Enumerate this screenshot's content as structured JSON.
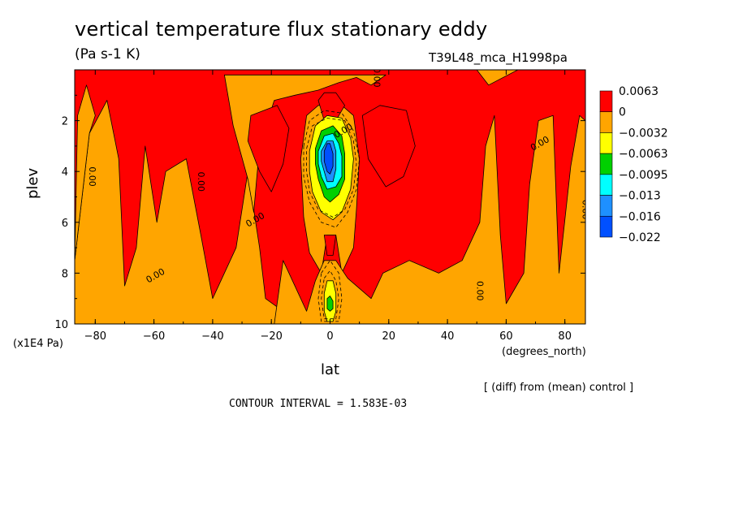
{
  "header": {
    "title": "vertical temperature flux stationary eddy",
    "units": "(Pa s-1 K)",
    "run_id": "T39L48_mca_H1998pa"
  },
  "footer": {
    "diff_note": "[ (diff) from (mean) control ]",
    "contour_interval": "CONTOUR INTERVAL = 1.583E-03"
  },
  "chart_data": {
    "type": "contour",
    "xlabel": "lat",
    "x_unit": "(degrees_north)",
    "ylabel": "plev",
    "y_scale_note": "(x1E4 Pa)",
    "xlim": [
      -87,
      87
    ],
    "ylim": [
      10,
      0
    ],
    "x_ticks": [
      -80,
      -60,
      -40,
      -20,
      0,
      20,
      40,
      60,
      80
    ],
    "y_ticks": [
      2,
      4,
      6,
      8,
      10
    ],
    "contour_label": "0.00",
    "colorbar": {
      "levels": [
        "0.0063",
        "0",
        "−0.0032",
        "−0.0063",
        "−0.0095",
        "−0.013",
        "−0.016",
        "−0.022"
      ],
      "colors": [
        "#ff0000",
        "#ffa500",
        "#ffff00",
        "#00d000",
        "#00ffff",
        "#1e90ff",
        "#0050ff"
      ]
    },
    "fill_colors": {
      "positive": "#ff0000",
      "near_zero": "#ffa500",
      "neg1": "#ffff00",
      "neg2": "#00d000",
      "neg3": "#00ffff",
      "neg4": "#1e90ff",
      "neg5": "#0050ff"
    },
    "regions": [
      {
        "band": "near_zero",
        "pts": [
          [
            -87,
            10
          ],
          [
            -87,
            7.5
          ],
          [
            -82,
            2.5
          ],
          [
            -76,
            1.2
          ],
          [
            -72,
            3.5
          ],
          [
            -70,
            8.5
          ],
          [
            -66,
            7
          ],
          [
            -63,
            3
          ],
          [
            -59,
            6
          ],
          [
            -56,
            4
          ],
          [
            -49,
            3.5
          ],
          [
            -44,
            6.5
          ],
          [
            -40,
            9
          ],
          [
            -32,
            7
          ],
          [
            -28,
            4
          ],
          [
            -24,
            7
          ],
          [
            -22,
            9
          ],
          [
            -10,
            10
          ]
        ]
      },
      {
        "band": "near_zero",
        "pts": [
          [
            -87,
            7.5
          ],
          [
            -86,
            1.8
          ],
          [
            -83,
            0.6
          ],
          [
            -80,
            1.8
          ],
          [
            -82,
            2.5
          ]
        ]
      },
      {
        "band": "near_zero",
        "pts": [
          [
            -36,
            0.2
          ],
          [
            -33,
            2.2
          ],
          [
            -28,
            4.3
          ],
          [
            -26,
            5.6
          ],
          [
            -24,
            3
          ],
          [
            -19,
            1.2
          ],
          [
            -12,
            1
          ],
          [
            -4,
            0.8
          ],
          [
            3,
            0.5
          ],
          [
            9,
            0.3
          ],
          [
            14,
            0.6
          ],
          [
            19,
            0.2
          ]
        ]
      },
      {
        "band": "near_zero",
        "pts": [
          [
            -8,
            1.8
          ],
          [
            -10,
            3.5
          ],
          [
            -9,
            5.8
          ],
          [
            -7,
            7.2
          ],
          [
            -3,
            8
          ],
          [
            -1,
            6.5
          ],
          [
            2,
            6.5
          ],
          [
            4,
            8
          ],
          [
            8,
            7
          ],
          [
            9,
            5.5
          ],
          [
            10,
            3.5
          ],
          [
            8,
            1.8
          ],
          [
            4,
            1.4
          ],
          [
            -4,
            1.4
          ]
        ]
      },
      {
        "band": "near_zero",
        "pts": [
          [
            -19,
            10
          ],
          [
            -16,
            7.5
          ],
          [
            -8,
            9.5
          ],
          [
            -5,
            8.3
          ],
          [
            -2,
            7.5
          ],
          [
            2,
            7.5
          ],
          [
            6,
            8.2
          ],
          [
            14,
            9
          ],
          [
            18,
            8
          ],
          [
            27,
            7.5
          ],
          [
            37,
            8
          ],
          [
            45,
            7.5
          ],
          [
            51,
            6
          ],
          [
            53,
            3
          ],
          [
            56,
            1.8
          ],
          [
            58,
            6.5
          ],
          [
            60,
            9.2
          ],
          [
            66,
            8
          ],
          [
            68,
            4.5
          ],
          [
            71,
            2
          ],
          [
            76,
            1.8
          ],
          [
            78,
            8
          ],
          [
            82,
            3.8
          ],
          [
            85,
            1.8
          ],
          [
            87,
            2
          ],
          [
            87,
            10
          ]
        ]
      },
      {
        "band": "near_zero",
        "pts": [
          [
            50,
            0
          ],
          [
            54,
            0.6
          ],
          [
            64,
            0
          ],
          [
            60,
            0
          ]
        ]
      },
      {
        "band": "positive",
        "pts": [
          [
            -27,
            1.8
          ],
          [
            -18,
            1.4
          ],
          [
            -14,
            2.3
          ],
          [
            -16,
            3.7
          ],
          [
            -20,
            4.8
          ],
          [
            -24,
            4
          ],
          [
            -28,
            2.8
          ]
        ]
      },
      {
        "band": "positive",
        "pts": [
          [
            11,
            1.8
          ],
          [
            17,
            1.4
          ],
          [
            26,
            1.6
          ],
          [
            29,
            3
          ],
          [
            25,
            4.2
          ],
          [
            19,
            4.6
          ],
          [
            13,
            3.5
          ]
        ]
      },
      {
        "band": "positive",
        "pts": [
          [
            -4,
            1.2
          ],
          [
            -2,
            0.9
          ],
          [
            2,
            0.9
          ],
          [
            5,
            1.4
          ],
          [
            2,
            2
          ],
          [
            -2,
            2
          ]
        ]
      },
      {
        "band": "positive",
        "pts": [
          [
            -2,
            6.5
          ],
          [
            2,
            6.5
          ],
          [
            1,
            7.3
          ],
          [
            -1,
            7.3
          ]
        ]
      },
      {
        "band": "neg1",
        "pts": [
          [
            -7,
            3.2
          ],
          [
            -5,
            2.2
          ],
          [
            -1,
            1.8
          ],
          [
            4,
            1.9
          ],
          [
            7,
            2.7
          ],
          [
            8,
            3.5
          ],
          [
            7,
            4.7
          ],
          [
            4,
            5.6
          ],
          [
            1,
            5.9
          ],
          [
            -3,
            5.6
          ],
          [
            -6,
            4.8
          ],
          [
            -7,
            4
          ]
        ]
      },
      {
        "band": "neg2",
        "pts": [
          [
            -5,
            3.1
          ],
          [
            -3,
            2.4
          ],
          [
            1,
            2.2
          ],
          [
            4,
            2.6
          ],
          [
            5,
            3.3
          ],
          [
            5,
            4.3
          ],
          [
            3,
            4.9
          ],
          [
            0,
            5.2
          ],
          [
            -2,
            5
          ],
          [
            -4,
            4.3
          ],
          [
            -5,
            3.7
          ]
        ]
      },
      {
        "band": "neg3",
        "pts": [
          [
            -4,
            3.2
          ],
          [
            -2,
            2.6
          ],
          [
            1,
            2.5
          ],
          [
            3,
            2.9
          ],
          [
            4,
            3.4
          ],
          [
            4,
            4.2
          ],
          [
            2,
            4.6
          ],
          [
            -1,
            4.7
          ],
          [
            -3,
            4.2
          ],
          [
            -4,
            3.7
          ]
        ]
      },
      {
        "band": "neg4",
        "pts": [
          [
            -3,
            3.2
          ],
          [
            -1,
            2.8
          ],
          [
            1,
            2.8
          ],
          [
            2,
            3.2
          ],
          [
            2,
            3.9
          ],
          [
            1,
            4.4
          ],
          [
            -1,
            4.4
          ],
          [
            -2,
            4
          ],
          [
            -3,
            3.6
          ]
        ]
      },
      {
        "band": "neg5",
        "pts": [
          [
            -2,
            3.2
          ],
          [
            -1,
            2.9
          ],
          [
            0,
            2.9
          ],
          [
            1,
            3.3
          ],
          [
            1,
            3.8
          ],
          [
            0,
            4.1
          ],
          [
            -1,
            4
          ],
          [
            -2,
            3.6
          ]
        ]
      },
      {
        "band": "neg1",
        "pts": [
          [
            -1,
            8.3
          ],
          [
            1,
            8.3
          ],
          [
            2,
            8.8
          ],
          [
            2,
            9.5
          ],
          [
            1,
            9.9
          ],
          [
            -1,
            9.9
          ],
          [
            -2,
            9.5
          ],
          [
            -2,
            8.8
          ]
        ]
      },
      {
        "band": "neg2",
        "pts": [
          [
            -1,
            9
          ],
          [
            0,
            8.9
          ],
          [
            1,
            9.1
          ],
          [
            1,
            9.4
          ],
          [
            0,
            9.5
          ],
          [
            -1,
            9.4
          ]
        ]
      }
    ],
    "dashed_contours": [
      [
        [
          -9,
          3
        ],
        [
          -7,
          2
        ],
        [
          -2,
          1.6
        ],
        [
          4,
          1.7
        ],
        [
          8,
          2.4
        ],
        [
          10,
          3.5
        ],
        [
          9,
          4.7
        ],
        [
          6,
          5.6
        ],
        [
          2,
          6.2
        ],
        [
          -3,
          6
        ],
        [
          -7,
          5.2
        ],
        [
          -9,
          4.2
        ]
      ],
      [
        [
          -8,
          3.1
        ],
        [
          -6,
          2.2
        ],
        [
          -1,
          1.9
        ],
        [
          5,
          2
        ],
        [
          8,
          2.8
        ],
        [
          9,
          3.7
        ],
        [
          8,
          4.7
        ],
        [
          5,
          5.5
        ],
        [
          1,
          5.8
        ],
        [
          -4,
          5.5
        ],
        [
          -7,
          4.8
        ],
        [
          -8,
          4
        ]
      ],
      [
        [
          -3,
          8
        ],
        [
          0,
          7.5
        ],
        [
          3,
          8
        ],
        [
          4,
          9
        ],
        [
          3,
          9.9
        ],
        [
          -3,
          9.9
        ],
        [
          -4,
          9
        ]
      ],
      [
        [
          -2,
          8.2
        ],
        [
          0,
          7.9
        ],
        [
          2,
          8.3
        ],
        [
          3,
          9
        ],
        [
          2,
          9.8
        ],
        [
          -2,
          9.8
        ],
        [
          -3,
          9
        ]
      ]
    ],
    "contour_labels_at": [
      [
        -82,
        4.2
      ],
      [
        -59,
        8.2
      ],
      [
        -45,
        4.4
      ],
      [
        -25,
        6
      ],
      [
        15,
        0.3
      ],
      [
        5,
        2.5
      ],
      [
        50,
        8.7
      ],
      [
        72,
        3
      ],
      [
        86,
        5.5
      ]
    ]
  }
}
